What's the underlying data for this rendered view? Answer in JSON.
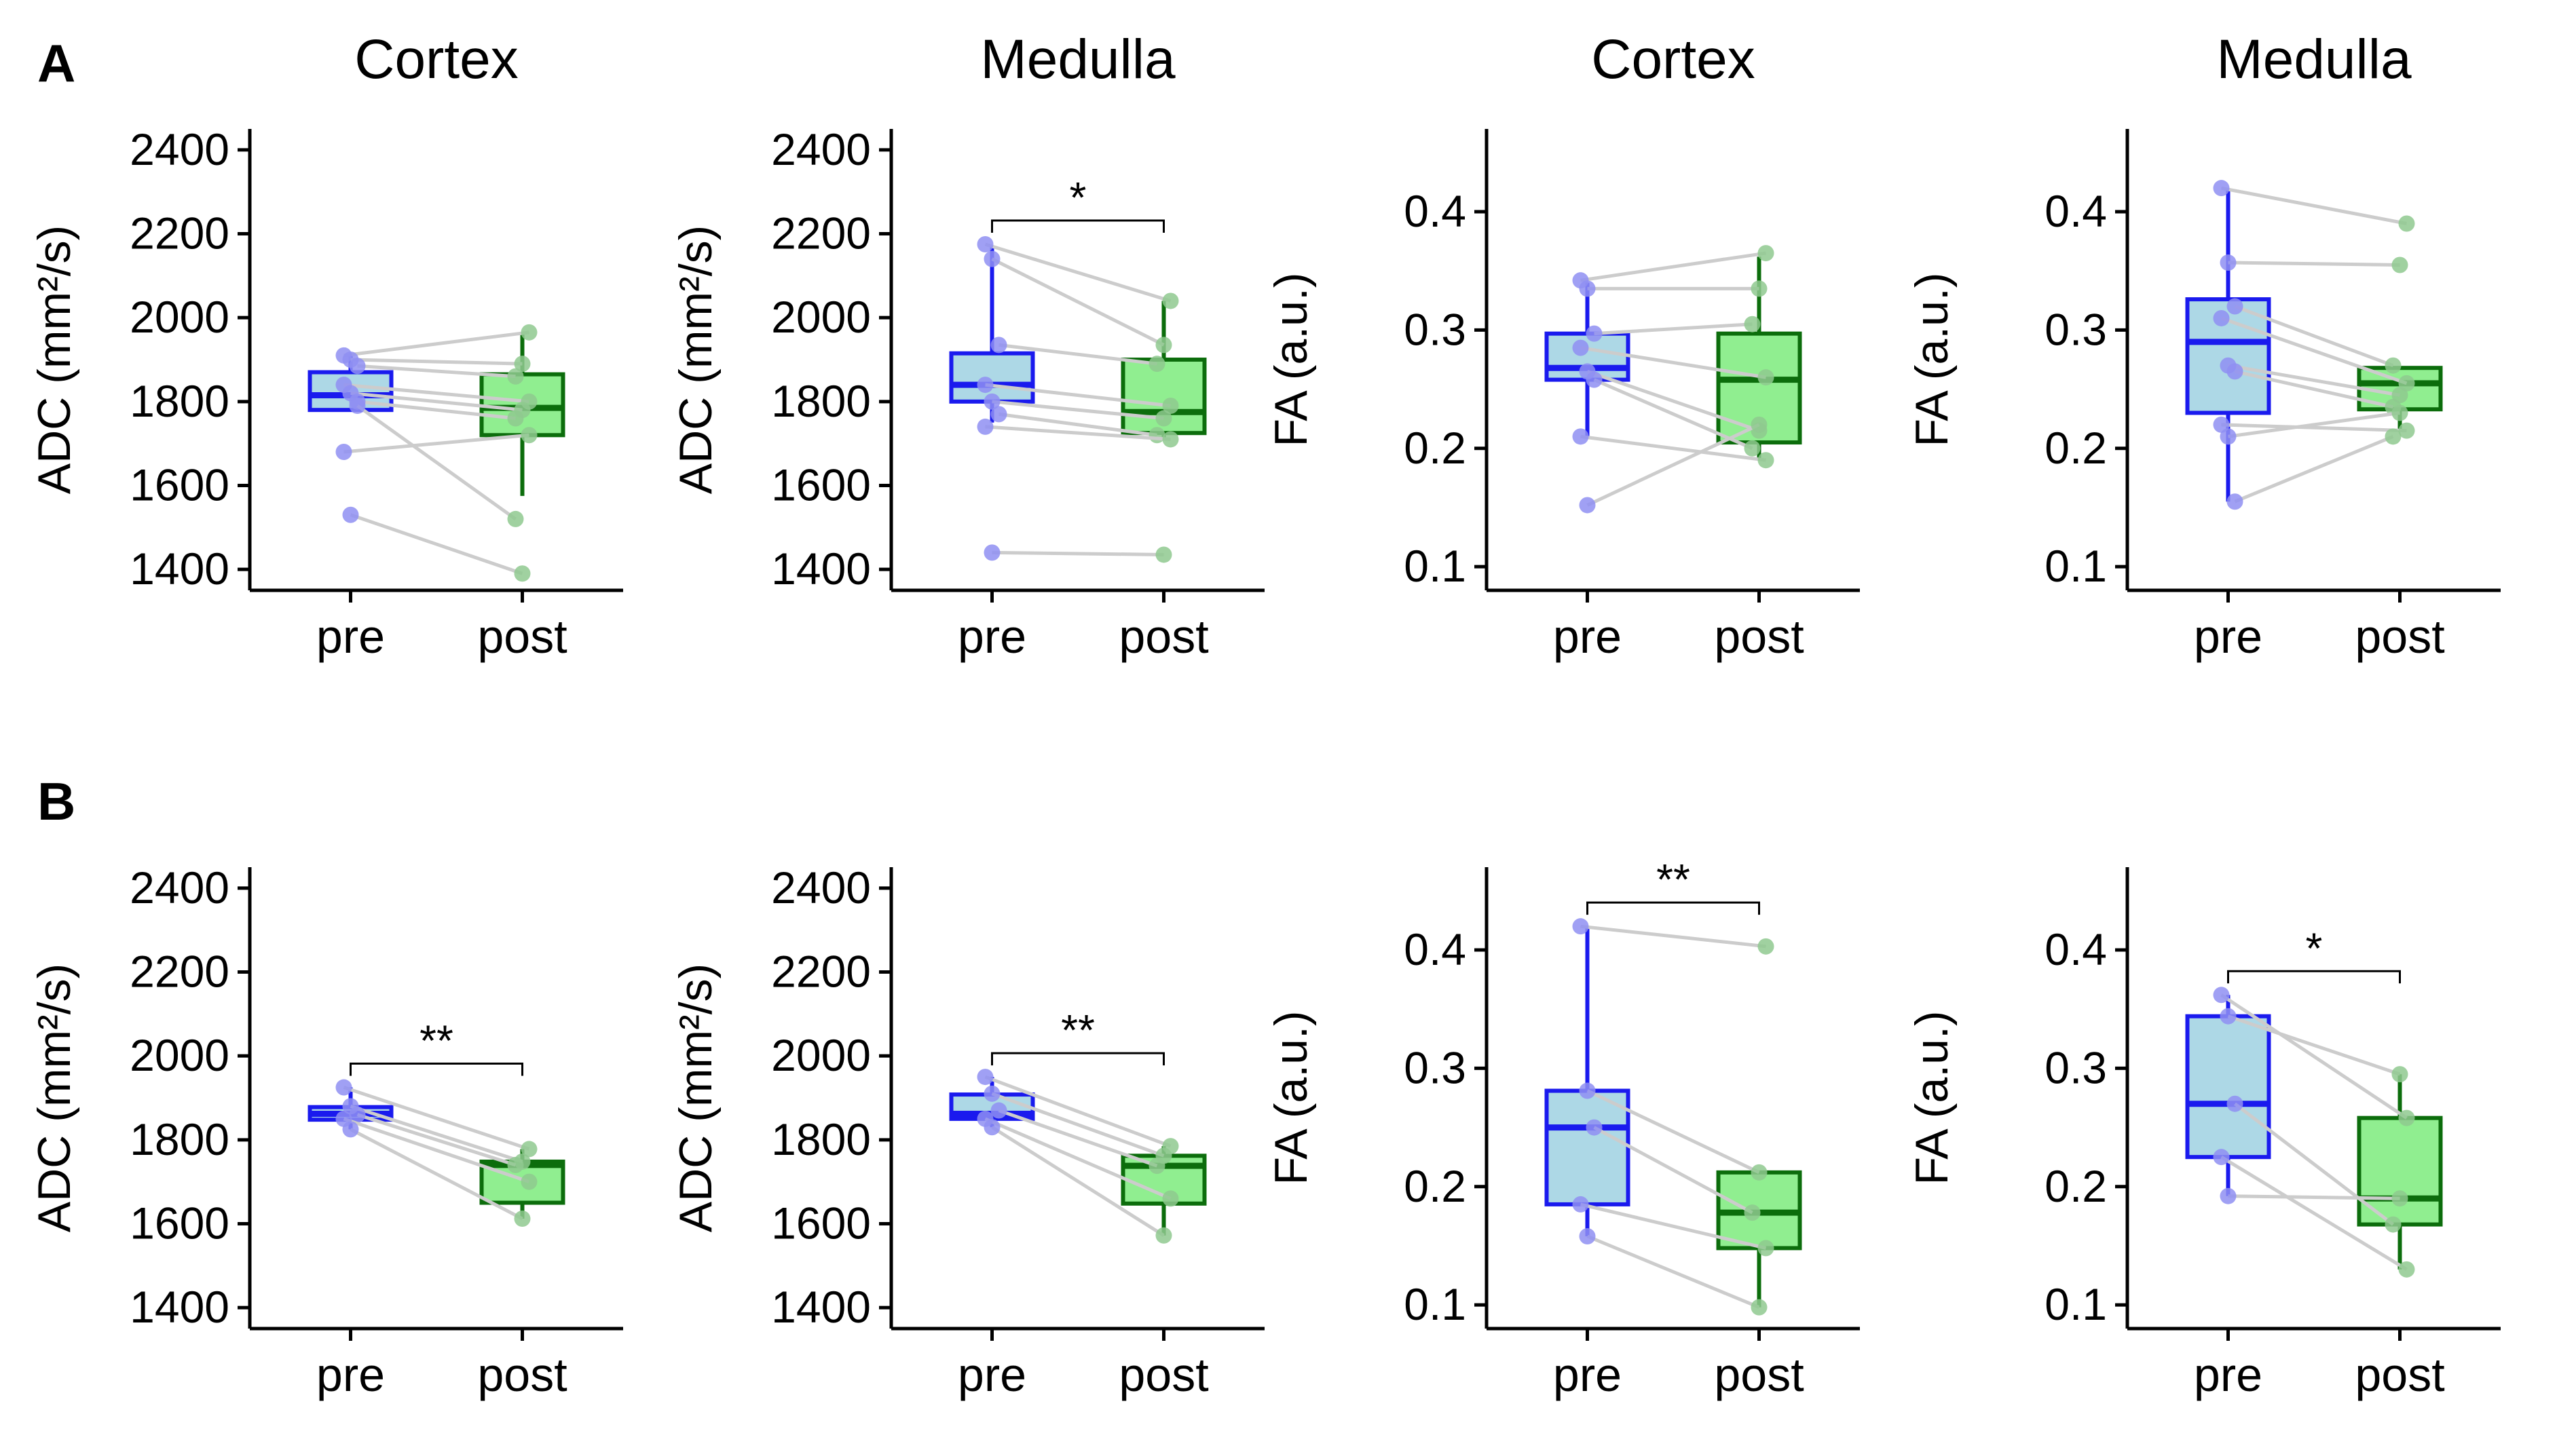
{
  "figure": {
    "rows": [
      {
        "label": "A"
      },
      {
        "label": "B"
      }
    ],
    "column_titles": [
      "Cortex",
      "Medulla",
      "Cortex",
      "Medulla"
    ]
  },
  "style": {
    "pre_stroke": "#1a1aee",
    "pre_fill": "#add8e6",
    "pre_point": "#8f8ff2",
    "post_stroke": "#0c6d0c",
    "post_fill": "#90ee90",
    "post_point": "#8fc98f",
    "pair_line": "#cccccc"
  },
  "chart_data": [
    {
      "id": "A-adc-cortex",
      "type": "box",
      "row": "A",
      "title": "Cortex",
      "ylabel": "ADC  (mm²/s)",
      "categories": [
        "pre",
        "post"
      ],
      "ylim": [
        1350,
        2450
      ],
      "yticks": [
        "1400",
        "1600",
        "1800",
        "2000",
        "2200",
        "2400"
      ],
      "boxes": [
        {
          "name": "pre",
          "whisker_low": 1780,
          "q1": 1780,
          "median": 1815,
          "q3": 1870,
          "whisker_high": 1910
        },
        {
          "name": "post",
          "whisker_low": 1575,
          "q1": 1720,
          "median": 1785,
          "q3": 1865,
          "whisker_high": 1965
        }
      ],
      "pairs": [
        [
          1910,
          1965
        ],
        [
          1900,
          1890
        ],
        [
          1885,
          1860
        ],
        [
          1840,
          1800
        ],
        [
          1820,
          1780
        ],
        [
          1800,
          1760
        ],
        [
          1680,
          1720
        ],
        [
          1530,
          1390
        ],
        [
          1790,
          1520
        ]
      ],
      "significance": ""
    },
    {
      "id": "A-adc-medulla",
      "type": "box",
      "row": "A",
      "title": "Medulla",
      "ylabel": "ADC  (mm²/s)",
      "categories": [
        "pre",
        "post"
      ],
      "ylim": [
        1350,
        2450
      ],
      "yticks": [
        "1400",
        "1600",
        "1800",
        "2000",
        "2200",
        "2400"
      ],
      "boxes": [
        {
          "name": "pre",
          "whisker_low": 1750,
          "q1": 1800,
          "median": 1840,
          "q3": 1915,
          "whisker_high": 2170
        },
        {
          "name": "post",
          "whisker_low": 1715,
          "q1": 1725,
          "median": 1775,
          "q3": 1900,
          "whisker_high": 2040
        }
      ],
      "pairs": [
        [
          2175,
          2040
        ],
        [
          2140,
          1935
        ],
        [
          1935,
          1890
        ],
        [
          1840,
          1790
        ],
        [
          1800,
          1760
        ],
        [
          1770,
          1720
        ],
        [
          1740,
          1710
        ],
        [
          1440,
          1435
        ]
      ],
      "significance": "*"
    },
    {
      "id": "A-fa-cortex",
      "type": "box",
      "row": "A",
      "title": "Cortex",
      "ylabel": "FA  (a.u.)",
      "categories": [
        "pre",
        "post"
      ],
      "ylim": [
        0.08,
        0.47
      ],
      "yticks": [
        "0.1",
        "0.2",
        "0.3",
        "0.4"
      ],
      "boxes": [
        {
          "name": "pre",
          "whisker_low": 0.21,
          "q1": 0.258,
          "median": 0.268,
          "q3": 0.297,
          "whisker_high": 0.34
        },
        {
          "name": "post",
          "whisker_low": 0.19,
          "q1": 0.205,
          "median": 0.258,
          "q3": 0.297,
          "whisker_high": 0.362
        }
      ],
      "pairs": [
        [
          0.342,
          0.365
        ],
        [
          0.335,
          0.335
        ],
        [
          0.297,
          0.305
        ],
        [
          0.285,
          0.26
        ],
        [
          0.265,
          0.215
        ],
        [
          0.258,
          0.2
        ],
        [
          0.21,
          0.19
        ],
        [
          0.152,
          0.22
        ]
      ],
      "significance": ""
    },
    {
      "id": "A-fa-medulla",
      "type": "box",
      "row": "A",
      "title": "Medulla",
      "ylabel": "FA  (a.u.)",
      "categories": [
        "pre",
        "post"
      ],
      "ylim": [
        0.08,
        0.47
      ],
      "yticks": [
        "0.1",
        "0.2",
        "0.3",
        "0.4"
      ],
      "boxes": [
        {
          "name": "pre",
          "whisker_low": 0.155,
          "q1": 0.23,
          "median": 0.29,
          "q3": 0.326,
          "whisker_high": 0.42
        },
        {
          "name": "post",
          "whisker_low": 0.215,
          "q1": 0.233,
          "median": 0.255,
          "q3": 0.268,
          "whisker_high": 0.268
        }
      ],
      "pairs": [
        [
          0.42,
          0.39
        ],
        [
          0.357,
          0.355
        ],
        [
          0.32,
          0.27
        ],
        [
          0.31,
          0.255
        ],
        [
          0.27,
          0.245
        ],
        [
          0.265,
          0.235
        ],
        [
          0.22,
          0.215
        ],
        [
          0.21,
          0.23
        ],
        [
          0.155,
          0.21
        ]
      ],
      "significance": ""
    },
    {
      "id": "B-adc-cortex",
      "type": "box",
      "row": "B",
      "title": "",
      "ylabel": "ADC  (mm²/s)",
      "categories": [
        "pre",
        "post"
      ],
      "ylim": [
        1350,
        2450
      ],
      "yticks": [
        "1400",
        "1600",
        "1800",
        "2000",
        "2200",
        "2400"
      ],
      "boxes": [
        {
          "name": "pre",
          "whisker_low": 1825,
          "q1": 1848,
          "median": 1862,
          "q3": 1878,
          "whisker_high": 1925
        },
        {
          "name": "post",
          "whisker_low": 1612,
          "q1": 1650,
          "median": 1740,
          "q3": 1748,
          "whisker_high": 1778
        }
      ],
      "pairs": [
        [
          1925,
          1778
        ],
        [
          1880,
          1748
        ],
        [
          1860,
          1740
        ],
        [
          1850,
          1700
        ],
        [
          1825,
          1612
        ]
      ],
      "significance": "**"
    },
    {
      "id": "B-adc-medulla",
      "type": "box",
      "row": "B",
      "title": "",
      "ylabel": "ADC  (mm²/s)",
      "categories": [
        "pre",
        "post"
      ],
      "ylim": [
        1350,
        2450
      ],
      "yticks": [
        "1400",
        "1600",
        "1800",
        "2000",
        "2200",
        "2400"
      ],
      "boxes": [
        {
          "name": "pre",
          "whisker_low": 1830,
          "q1": 1850,
          "median": 1862,
          "q3": 1908,
          "whisker_high": 1950
        },
        {
          "name": "post",
          "whisker_low": 1572,
          "q1": 1648,
          "median": 1738,
          "q3": 1762,
          "whisker_high": 1785
        }
      ],
      "pairs": [
        [
          1950,
          1785
        ],
        [
          1910,
          1762
        ],
        [
          1870,
          1738
        ],
        [
          1850,
          1660
        ],
        [
          1830,
          1572
        ]
      ],
      "significance": "**"
    },
    {
      "id": "B-fa-cortex",
      "type": "box",
      "row": "B",
      "title": "",
      "ylabel": "FA  (a.u.)",
      "categories": [
        "pre",
        "post"
      ],
      "ylim": [
        0.08,
        0.47
      ],
      "yticks": [
        "0.1",
        "0.2",
        "0.3",
        "0.4"
      ],
      "boxes": [
        {
          "name": "pre",
          "whisker_low": 0.158,
          "q1": 0.185,
          "median": 0.25,
          "q3": 0.281,
          "whisker_high": 0.42
        },
        {
          "name": "post",
          "whisker_low": 0.098,
          "q1": 0.148,
          "median": 0.178,
          "q3": 0.212,
          "whisker_high": 0.212
        }
      ],
      "pairs": [
        [
          0.42,
          0.403
        ],
        [
          0.281,
          0.212
        ],
        [
          0.25,
          0.178
        ],
        [
          0.185,
          0.148
        ],
        [
          0.158,
          0.098
        ]
      ],
      "significance": "**"
    },
    {
      "id": "B-fa-medulla",
      "type": "box",
      "row": "B",
      "title": "",
      "ylabel": "FA  (a.u.)",
      "categories": [
        "pre",
        "post"
      ],
      "ylim": [
        0.08,
        0.47
      ],
      "yticks": [
        "0.1",
        "0.2",
        "0.3",
        "0.4"
      ],
      "boxes": [
        {
          "name": "pre",
          "whisker_low": 0.192,
          "q1": 0.225,
          "median": 0.27,
          "q3": 0.344,
          "whisker_high": 0.362
        },
        {
          "name": "post",
          "whisker_low": 0.13,
          "q1": 0.168,
          "median": 0.19,
          "q3": 0.258,
          "whisker_high": 0.295
        }
      ],
      "pairs": [
        [
          0.362,
          0.258
        ],
        [
          0.344,
          0.295
        ],
        [
          0.27,
          0.168
        ],
        [
          0.225,
          0.13
        ],
        [
          0.192,
          0.19
        ]
      ],
      "significance": "*"
    }
  ]
}
